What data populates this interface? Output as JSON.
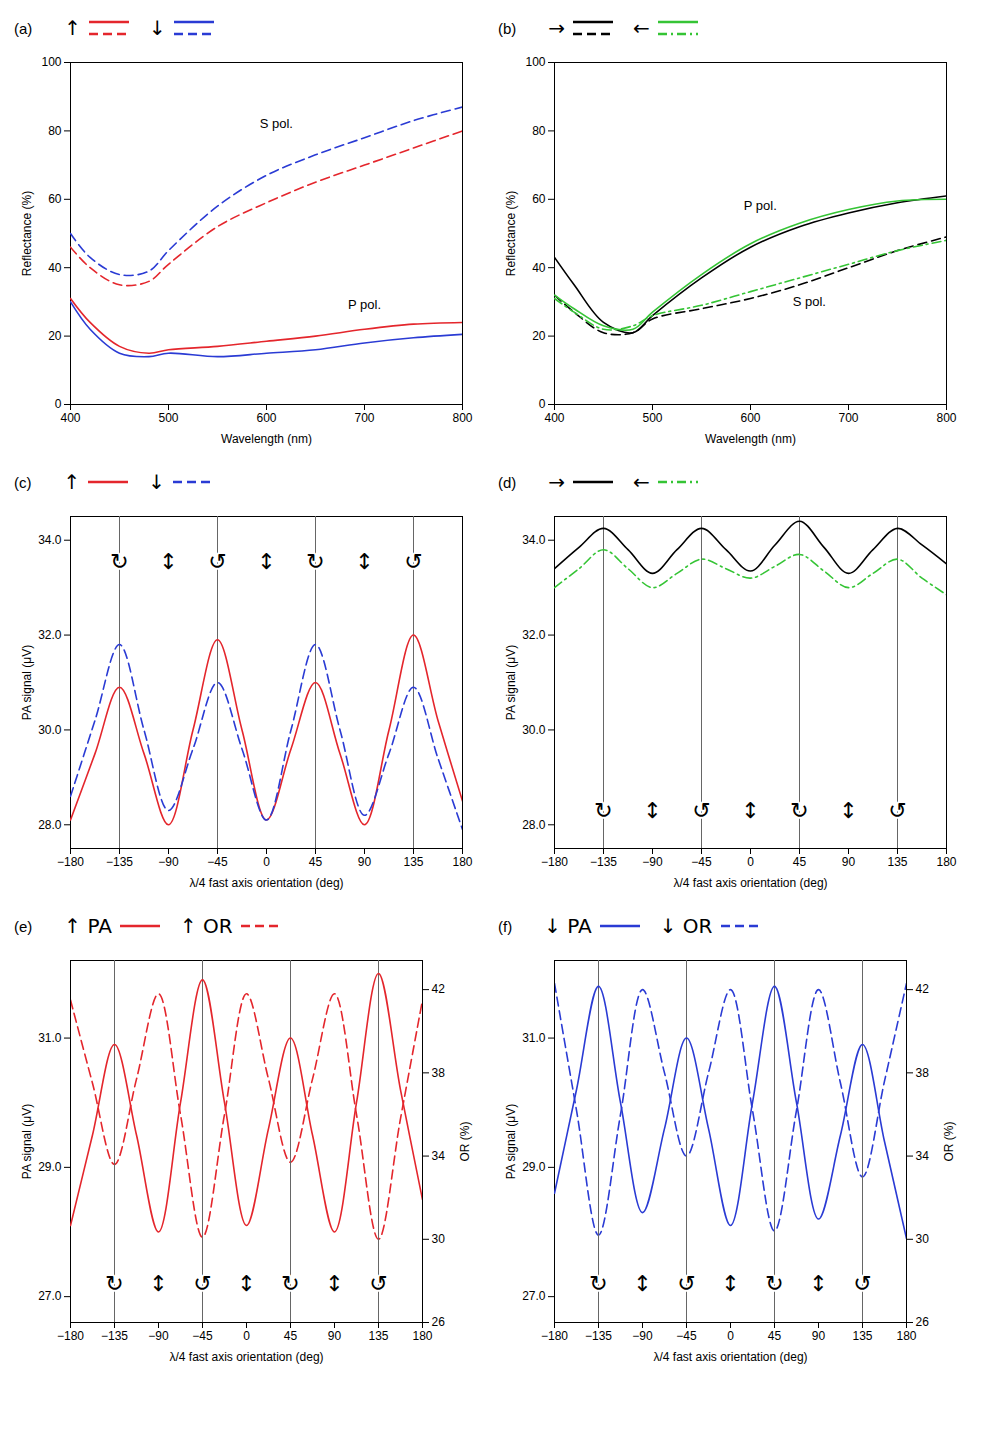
{
  "chart_data": [
    {
      "type": "line",
      "panel_label": "(a)",
      "x_label": "Wavelength (nm)",
      "y_label": "Reflectance (%)",
      "xlim": [
        400,
        800
      ],
      "xticks": [
        400,
        500,
        600,
        700,
        800
      ],
      "ylim": [
        0,
        100
      ],
      "yticks": [
        0,
        20,
        40,
        60,
        80,
        100
      ],
      "grid": false,
      "x": [
        400,
        420,
        450,
        480,
        500,
        550,
        600,
        650,
        700,
        750,
        800
      ],
      "series": [
        {
          "name": "↑",
          "color": "#e4262c",
          "line_style": "solid",
          "values": [
            31,
            24,
            17,
            15,
            16,
            17,
            18.5,
            20,
            22,
            23.5,
            24
          ]
        },
        {
          "name": "↑",
          "color": "#e4262c",
          "line_style": "dashed",
          "values": [
            46,
            40,
            35,
            36,
            41,
            52,
            59,
            65,
            70,
            75,
            80
          ]
        },
        {
          "name": "↓",
          "color": "#2a3bd4",
          "line_style": "solid",
          "values": [
            30,
            22,
            15,
            14,
            15,
            14,
            15,
            16,
            18,
            19.5,
            20.5
          ]
        },
        {
          "name": "↓",
          "color": "#2a3bd4",
          "line_style": "dashed",
          "values": [
            50,
            43,
            38,
            39,
            45,
            58,
            67,
            73,
            78,
            83,
            87
          ]
        }
      ],
      "annotations": [
        {
          "text": "S pol.",
          "x": 610,
          "y": 82
        },
        {
          "text": "P pol.",
          "x": 700,
          "y": 29
        }
      ]
    },
    {
      "type": "line",
      "panel_label": "(b)",
      "x_label": "Wavelength (nm)",
      "y_label": "Reflectance (%)",
      "xlim": [
        400,
        800
      ],
      "xticks": [
        400,
        500,
        600,
        700,
        800
      ],
      "ylim": [
        0,
        100
      ],
      "yticks": [
        0,
        20,
        40,
        60,
        80,
        100
      ],
      "grid": false,
      "x": [
        400,
        420,
        450,
        480,
        500,
        550,
        600,
        650,
        700,
        750,
        800
      ],
      "series": [
        {
          "name": "→",
          "color": "#000000",
          "line_style": "solid",
          "values": [
            43,
            35,
            24,
            21,
            26,
            37,
            46,
            52,
            56,
            59,
            61
          ]
        },
        {
          "name": "→",
          "color": "#000000",
          "line_style": "dashed",
          "values": [
            32,
            27,
            21,
            21,
            25,
            28,
            31,
            35,
            40,
            45,
            49
          ]
        },
        {
          "name": "←",
          "color": "#35c435",
          "line_style": "solid",
          "values": [
            32,
            28,
            23,
            22,
            27,
            38,
            47,
            53,
            57,
            59.5,
            60
          ]
        },
        {
          "name": "←",
          "color": "#35c435",
          "line_style": "dashdot",
          "values": [
            31,
            27,
            22,
            23,
            26,
            29,
            33,
            37,
            41,
            45,
            48
          ]
        }
      ],
      "annotations": [
        {
          "text": "P pol.",
          "x": 610,
          "y": 58
        },
        {
          "text": "S pol.",
          "x": 660,
          "y": 30
        }
      ]
    },
    {
      "type": "line",
      "panel_label": "(c)",
      "x_label": "λ/4 fast axis orientation (deg)",
      "y_label": "PA signal (μV)",
      "xlim": [
        -180,
        180
      ],
      "xticks": [
        -180,
        -135,
        -90,
        -45,
        0,
        45,
        90,
        135,
        180
      ],
      "ylim": [
        27.5,
        34.5
      ],
      "yticks": [
        28,
        30,
        32,
        34
      ],
      "grid": false,
      "x": [
        -180,
        -157.5,
        -135,
        -112.5,
        -90,
        -67.5,
        -45,
        -22.5,
        0,
        22.5,
        45,
        67.5,
        90,
        112.5,
        135,
        157.5,
        180
      ],
      "series": [
        {
          "name": "↑",
          "color": "#e4262c",
          "line_style": "solid",
          "values": [
            28.1,
            29.5,
            30.9,
            29.5,
            28.0,
            30.0,
            31.9,
            30.0,
            28.1,
            29.6,
            31.0,
            29.5,
            28.0,
            30.0,
            32.0,
            30.2,
            28.5
          ]
        },
        {
          "name": "↓",
          "color": "#2a3bd4",
          "line_style": "dashed",
          "values": [
            28.6,
            30.2,
            31.8,
            30.0,
            28.3,
            29.6,
            31.0,
            29.6,
            28.1,
            30.0,
            31.8,
            30.0,
            28.2,
            29.5,
            30.9,
            29.4,
            27.9
          ]
        }
      ],
      "vlines": [
        -135,
        -45,
        45,
        135
      ],
      "markers": [
        {
          "x": -135,
          "y": 33.55,
          "symbol": "↻"
        },
        {
          "x": -90,
          "y": 33.55,
          "symbol": "↕"
        },
        {
          "x": -45,
          "y": 33.55,
          "symbol": "↺"
        },
        {
          "x": 0,
          "y": 33.55,
          "symbol": "↕"
        },
        {
          "x": 45,
          "y": 33.55,
          "symbol": "↻"
        },
        {
          "x": 90,
          "y": 33.55,
          "symbol": "↕"
        },
        {
          "x": 135,
          "y": 33.55,
          "symbol": "↺"
        }
      ]
    },
    {
      "type": "line",
      "panel_label": "(d)",
      "x_label": "λ/4 fast axis orientation (deg)",
      "y_label": "PA signal (μV)",
      "xlim": [
        -180,
        180
      ],
      "xticks": [
        -180,
        -135,
        -90,
        -45,
        0,
        45,
        90,
        135,
        180
      ],
      "ylim": [
        27.5,
        34.5
      ],
      "yticks": [
        28,
        30,
        32,
        34
      ],
      "grid": false,
      "x": [
        -180,
        -157.5,
        -135,
        -112.5,
        -90,
        -67.5,
        -45,
        -22.5,
        0,
        22.5,
        45,
        67.5,
        90,
        112.5,
        135,
        157.5,
        180
      ],
      "series": [
        {
          "name": "→",
          "color": "#000000",
          "line_style": "solid",
          "values": [
            33.4,
            33.85,
            34.25,
            33.8,
            33.3,
            33.8,
            34.25,
            33.8,
            33.35,
            33.9,
            34.4,
            33.85,
            33.3,
            33.8,
            34.25,
            33.9,
            33.5
          ]
        },
        {
          "name": "←",
          "color": "#35c435",
          "line_style": "dashdot",
          "values": [
            33.0,
            33.4,
            33.8,
            33.4,
            33.0,
            33.3,
            33.6,
            33.4,
            33.2,
            33.45,
            33.7,
            33.35,
            33.0,
            33.3,
            33.6,
            33.2,
            32.85
          ]
        }
      ],
      "vlines": [
        -135,
        -45,
        45,
        135
      ],
      "markers": [
        {
          "x": -135,
          "y": 28.3,
          "symbol": "↻"
        },
        {
          "x": -90,
          "y": 28.3,
          "symbol": "↕"
        },
        {
          "x": -45,
          "y": 28.3,
          "symbol": "↺"
        },
        {
          "x": 0,
          "y": 28.3,
          "symbol": "↕"
        },
        {
          "x": 45,
          "y": 28.3,
          "symbol": "↻"
        },
        {
          "x": 90,
          "y": 28.3,
          "symbol": "↕"
        },
        {
          "x": 135,
          "y": 28.3,
          "symbol": "↺"
        }
      ]
    },
    {
      "type": "line",
      "panel_label": "(e)",
      "x_label": "λ/4 fast axis orientation (deg)",
      "y_label": "PA signal (μV)",
      "y2_label": "OR (%)",
      "xlim": [
        -180,
        180
      ],
      "xticks": [
        -180,
        -135,
        -90,
        -45,
        0,
        45,
        90,
        135,
        180
      ],
      "ylim": [
        26.6,
        32.2
      ],
      "yticks": [
        27,
        29,
        31
      ],
      "y2lim": [
        26,
        43.4
      ],
      "y2ticks": [
        26,
        30,
        34,
        38,
        42
      ],
      "grid": false,
      "x": [
        -180,
        -157.5,
        -135,
        -112.5,
        -90,
        -67.5,
        -45,
        -22.5,
        0,
        22.5,
        45,
        67.5,
        90,
        112.5,
        135,
        157.5,
        180
      ],
      "series": [
        {
          "name": "↑ PA",
          "color": "#e4262c",
          "line_style": "solid",
          "values": [
            28.1,
            29.5,
            30.9,
            29.5,
            28.0,
            30.0,
            31.9,
            30.0,
            28.1,
            29.6,
            31.0,
            29.5,
            28.0,
            30.0,
            32.0,
            30.2,
            28.5
          ]
        },
        {
          "name": "↑ OR",
          "color": "#e4262c",
          "line_style": "dashed",
          "axis": "y2",
          "values": [
            41.5,
            37.5,
            33.6,
            37.7,
            41.8,
            36,
            30.1,
            36,
            41.8,
            37.7,
            33.7,
            37.7,
            41.8,
            36,
            30.0,
            35.8,
            41.5
          ]
        }
      ],
      "vlines": [
        -135,
        -45,
        45,
        135
      ],
      "markers": [
        {
          "x": -135,
          "y": 27.2,
          "symbol": "↻"
        },
        {
          "x": -90,
          "y": 27.2,
          "symbol": "↕"
        },
        {
          "x": -45,
          "y": 27.2,
          "symbol": "↺"
        },
        {
          "x": 0,
          "y": 27.2,
          "symbol": "↕"
        },
        {
          "x": 45,
          "y": 27.2,
          "symbol": "↻"
        },
        {
          "x": 90,
          "y": 27.2,
          "symbol": "↕"
        },
        {
          "x": 135,
          "y": 27.2,
          "symbol": "↺"
        }
      ]
    },
    {
      "type": "line",
      "panel_label": "(f)",
      "x_label": "λ/4 fast axis orientation (deg)",
      "y_label": "PA signal (μV)",
      "y2_label": "OR (%)",
      "xlim": [
        -180,
        180
      ],
      "xticks": [
        -180,
        -135,
        -90,
        -45,
        0,
        45,
        90,
        135,
        180
      ],
      "ylim": [
        26.6,
        32.2
      ],
      "yticks": [
        27,
        29,
        31
      ],
      "y2lim": [
        26,
        43.4
      ],
      "y2ticks": [
        26,
        30,
        34,
        38,
        42
      ],
      "grid": false,
      "x": [
        -180,
        -157.5,
        -135,
        -112.5,
        -90,
        -67.5,
        -45,
        -22.5,
        0,
        22.5,
        45,
        67.5,
        90,
        112.5,
        135,
        157.5,
        180
      ],
      "series": [
        {
          "name": "↓ PA",
          "color": "#2a3bd4",
          "line_style": "solid",
          "values": [
            28.6,
            30.2,
            31.8,
            30.0,
            28.3,
            29.6,
            31.0,
            29.6,
            28.1,
            30.0,
            31.8,
            30.0,
            28.2,
            29.5,
            30.9,
            29.4,
            27.9
          ]
        },
        {
          "name": "↓ OR",
          "color": "#2a3bd4",
          "line_style": "dashed",
          "axis": "y2",
          "values": [
            42.3,
            36.2,
            30.2,
            36,
            42,
            38,
            34,
            38,
            42,
            36.2,
            30.4,
            36.2,
            42,
            37.5,
            33,
            37.6,
            42.3
          ]
        }
      ],
      "vlines": [
        -135,
        -45,
        45,
        135
      ],
      "markers": [
        {
          "x": -135,
          "y": 27.2,
          "symbol": "↻"
        },
        {
          "x": -90,
          "y": 27.2,
          "symbol": "↕"
        },
        {
          "x": -45,
          "y": 27.2,
          "symbol": "↺"
        },
        {
          "x": 0,
          "y": 27.2,
          "symbol": "↕"
        },
        {
          "x": 45,
          "y": 27.2,
          "symbol": "↻"
        },
        {
          "x": 90,
          "y": 27.2,
          "symbol": "↕"
        },
        {
          "x": 135,
          "y": 27.2,
          "symbol": "↺"
        }
      ]
    }
  ]
}
